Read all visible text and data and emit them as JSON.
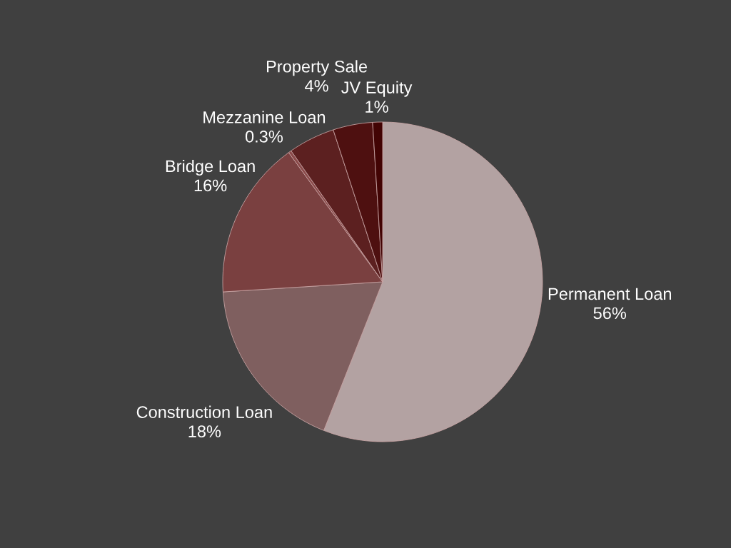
{
  "chart_data": {
    "type": "pie",
    "categories": [
      "Permanent Loan",
      "Construction Loan",
      "Bridge Loan",
      "Mezzanine Loan",
      null,
      "Property Sale",
      "JV Equity"
    ],
    "values": [
      56,
      18,
      16,
      0.3,
      4.7,
      4,
      1
    ],
    "value_labels": [
      "56%",
      "18%",
      "16%",
      "0.3%",
      null,
      "4%",
      "1%"
    ],
    "colors": [
      "#b3a2a2",
      "#7f5f5f",
      "#7a4040",
      "#8a4a4a",
      "#5c2020",
      "#4e1010",
      "#420404"
    ]
  }
}
